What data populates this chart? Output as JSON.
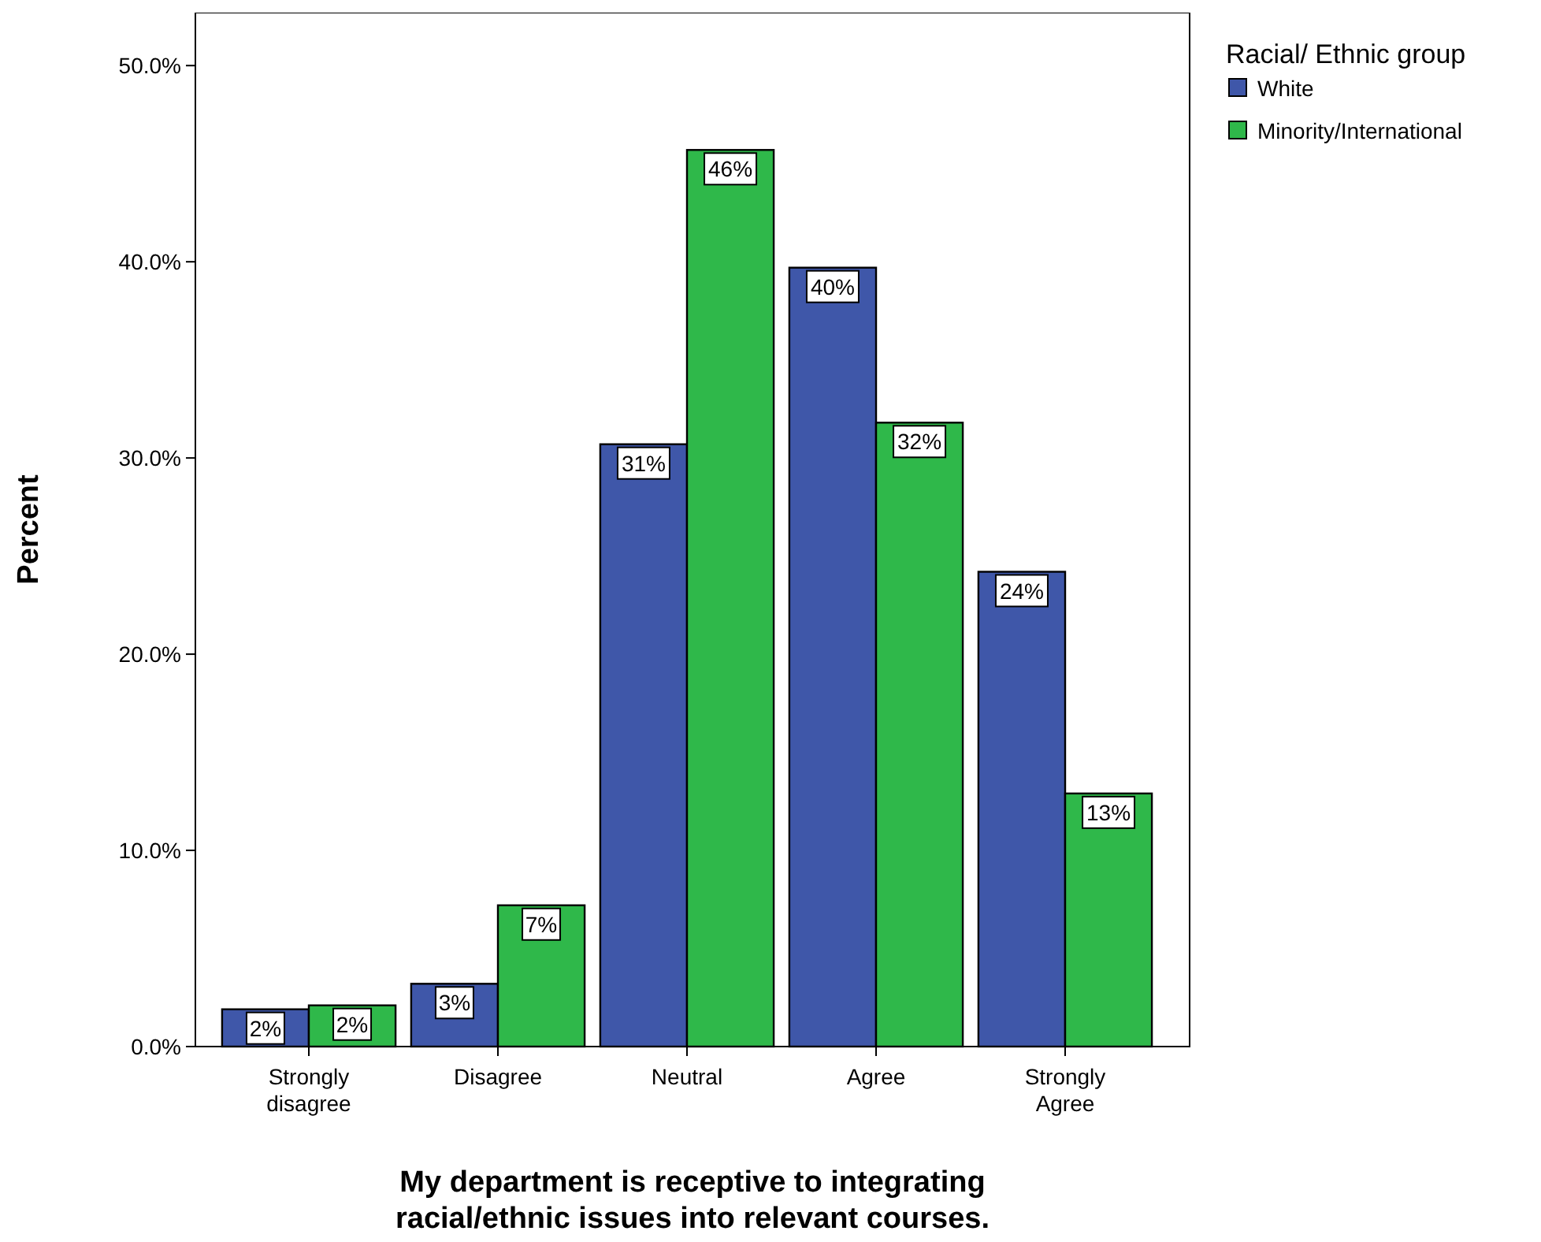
{
  "chart_data": {
    "type": "bar",
    "xlabel": "My department is receptive to integrating racial/ethnic issues into relevant courses.",
    "ylabel": "Percent",
    "legend_title": "Racial/ Ethnic group",
    "legend": "top right",
    "grid": false,
    "categories": [
      "Strongly disagree",
      "Disagree",
      "Neutral",
      "Agree",
      "Strongly Agree"
    ],
    "series": [
      {
        "name": "White",
        "color": "#3f57a9",
        "values": [
          1.9,
          3.2,
          30.7,
          39.7,
          24.2
        ],
        "value_labels": [
          "2%",
          "3%",
          "31%",
          "40%",
          "24%"
        ]
      },
      {
        "name": "Minority/International",
        "color": "#2fb84a",
        "values": [
          2.1,
          7.2,
          45.7,
          31.8,
          12.9
        ],
        "value_labels": [
          "2%",
          "7%",
          "46%",
          "32%",
          "13%"
        ]
      }
    ],
    "ylim": [
      0,
      52.7
    ],
    "yticks": [
      {
        "value": 0,
        "label": "0.0%"
      },
      {
        "value": 10,
        "label": "10.0%"
      },
      {
        "value": 20,
        "label": "20.0%"
      },
      {
        "value": 30,
        "label": "30.0%"
      },
      {
        "value": 40,
        "label": "40.0%"
      },
      {
        "value": 50,
        "label": "50.0%"
      }
    ]
  }
}
